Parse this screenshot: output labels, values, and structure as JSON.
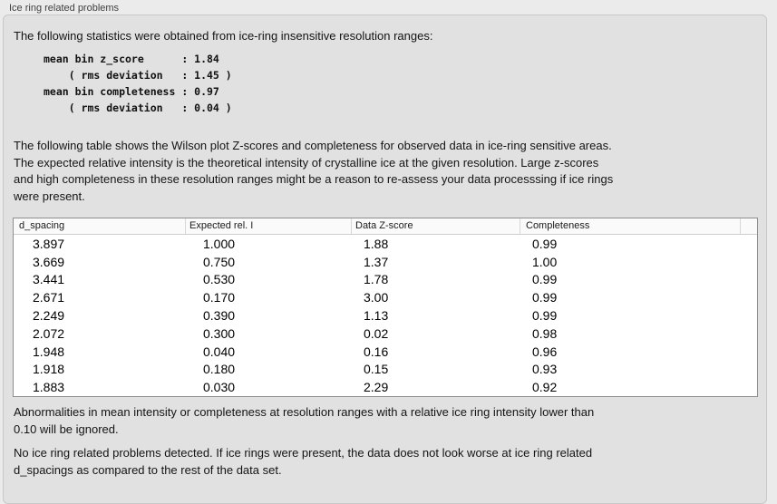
{
  "panel": {
    "title": "Ice ring related problems"
  },
  "intro": {
    "text": "The following statistics were obtained from ice-ring insensitive resolution ranges:"
  },
  "stats_block": {
    "text": "mean bin z_score      : 1.84\n    ( rms deviation   : 1.45 )\nmean bin completeness : 0.97\n    ( rms deviation   : 0.04 )",
    "mean_bin_z_score": "1.84",
    "z_score_rms_deviation": "1.45",
    "mean_bin_completeness": "0.97",
    "completeness_rms_deviation": "0.04"
  },
  "description": {
    "text": "The following table shows the Wilson plot Z-scores and completeness for observed data in ice-ring sensitive areas.\nThe expected relative intensity is the theoretical intensity of crystalline ice at the given resolution. Large z-scores\nand high completeness in these resolution ranges might be a reason to re-assess your data processsing if ice rings\nwere present."
  },
  "table": {
    "columns": [
      "d_spacing",
      "Expected rel. I",
      "Data Z-score",
      "Completeness"
    ],
    "rows": [
      [
        "3.897",
        "1.000",
        "1.88",
        "0.99"
      ],
      [
        "3.669",
        "0.750",
        "1.37",
        "1.00"
      ],
      [
        "3.441",
        "0.530",
        "1.78",
        "0.99"
      ],
      [
        "2.671",
        "0.170",
        "3.00",
        "0.99"
      ],
      [
        "2.249",
        "0.390",
        "1.13",
        "0.99"
      ],
      [
        "2.072",
        "0.300",
        "0.02",
        "0.98"
      ],
      [
        "1.948",
        "0.040",
        "0.16",
        "0.96"
      ],
      [
        "1.918",
        "0.180",
        "0.15",
        "0.93"
      ],
      [
        "1.883",
        "0.030",
        "2.29",
        "0.92"
      ]
    ]
  },
  "notes": {
    "ignore_rule": "Abnormalities in mean intensity or completeness at resolution ranges with a relative ice ring intensity lower than\n0.10 will be ignored.",
    "conclusion": "No ice ring related problems detected. If ice rings were present, the data does not look worse at ice ring related\nd_spacings as compared to the rest of the data set."
  },
  "colors": {
    "page_bg": "#ebebeb",
    "panel_bg": "#e1e1e1",
    "panel_border": "#c8c8c8",
    "table_border": "#8e8e8e",
    "table_header_bg": "#fafafa",
    "table_bg": "#ffffff",
    "text": "#141414"
  }
}
